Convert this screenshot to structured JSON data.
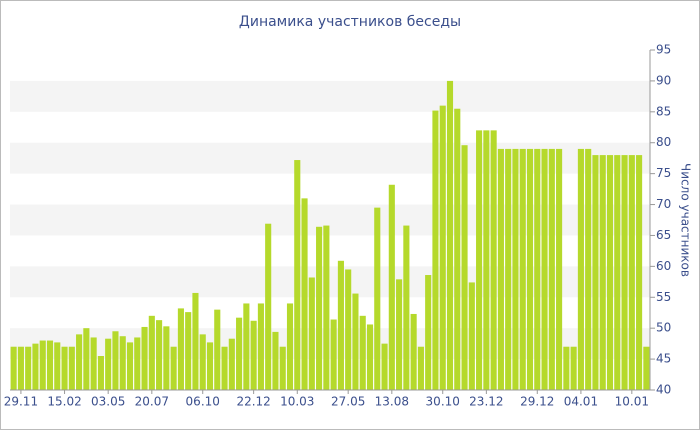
{
  "chart_data": {
    "type": "bar",
    "title": "Динамика участников беседы",
    "y_axis_label": "Число участников",
    "categories": [
      null,
      "29.11",
      null,
      null,
      null,
      null,
      null,
      "15.02",
      null,
      null,
      null,
      null,
      null,
      "03.05",
      null,
      null,
      null,
      null,
      null,
      "20.07",
      null,
      null,
      null,
      null,
      null,
      null,
      "06.10",
      null,
      null,
      null,
      null,
      null,
      null,
      "22.12",
      null,
      null,
      null,
      null,
      null,
      "10.03",
      null,
      null,
      null,
      null,
      null,
      null,
      "27.05",
      null,
      null,
      null,
      null,
      null,
      "13.08",
      null,
      null,
      null,
      null,
      null,
      null,
      "30.10",
      null,
      null,
      null,
      null,
      null,
      "23.12",
      null,
      null,
      null,
      null,
      null,
      null,
      "29.12",
      null,
      null,
      null,
      null,
      null,
      "04.01",
      null,
      null,
      null,
      null,
      null,
      null,
      "10.01",
      null,
      null
    ],
    "values": [
      47,
      47,
      47,
      47.5,
      48,
      48,
      47.7,
      47,
      47,
      49,
      50,
      48.5,
      45.5,
      48.3,
      49.5,
      48.7,
      47.7,
      48.5,
      50.2,
      52,
      51.3,
      50.3,
      47,
      53.2,
      52.6,
      55.7,
      49,
      47.7,
      53,
      47,
      48.3,
      51.7,
      54,
      51.2,
      54,
      66.9,
      49.4,
      47,
      54,
      77.2,
      71,
      58.2,
      66.4,
      66.6,
      51.4,
      60.9,
      59.5,
      55.6,
      52,
      50.6,
      69.5,
      47.5,
      73.2,
      57.9,
      66.6,
      52.3,
      47,
      58.6,
      85.2,
      86,
      90,
      85.5,
      79.6,
      57.4,
      82,
      82,
      82,
      79,
      79,
      79,
      79,
      79,
      79,
      79,
      79,
      79,
      47,
      47,
      79,
      79,
      78,
      78,
      78,
      78,
      78,
      78,
      78,
      47
    ],
    "color": "#b5d92b",
    "ylim": [
      40,
      95
    ],
    "yticks": [
      40,
      45,
      50,
      55,
      60,
      65,
      70,
      75,
      80,
      85,
      90,
      95
    ],
    "grid": true
  }
}
